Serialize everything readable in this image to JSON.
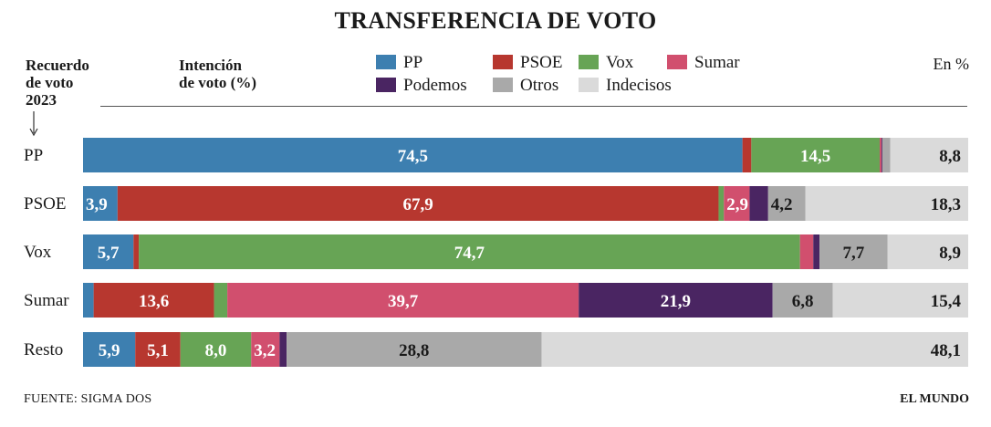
{
  "title": "TRANSFERENCIA DE VOTO",
  "header": {
    "left_line1": "Recuerdo",
    "left_line2": "de voto",
    "left_line3": "2023",
    "mid_line1": "Intención",
    "mid_line2": "de voto (%)",
    "unit": "En %"
  },
  "footer": {
    "source": "FUENTE:  SIGMA DOS",
    "brand": "EL MUNDO"
  },
  "chart_data": {
    "type": "bar",
    "orientation": "horizontal",
    "stacked": true,
    "xlim": [
      0,
      100
    ],
    "categories": [
      "PP",
      "PSOE",
      "Vox",
      "Sumar",
      "Resto"
    ],
    "series": [
      {
        "name": "PP",
        "color": "#3d7fb0",
        "values": [
          74.5,
          3.9,
          5.7,
          1.2,
          5.9
        ],
        "labels": [
          "74,5",
          "3,9",
          "5,7",
          "",
          "5,9"
        ]
      },
      {
        "name": "PSOE",
        "color": "#b7372f",
        "values": [
          1.0,
          67.9,
          0.6,
          13.6,
          5.1
        ],
        "labels": [
          "",
          "67,9",
          "",
          "13,6",
          "5,1"
        ]
      },
      {
        "name": "Vox",
        "color": "#67a455",
        "values": [
          14.5,
          0.6,
          74.7,
          1.5,
          8.0
        ],
        "labels": [
          "14,5",
          "",
          "74,7",
          "",
          "8,0"
        ]
      },
      {
        "name": "Sumar",
        "color": "#d14f6e",
        "values": [
          0.2,
          2.9,
          1.5,
          39.7,
          3.2
        ],
        "labels": [
          "",
          "2,9",
          "",
          "39,7",
          "3,2"
        ]
      },
      {
        "name": "Podemos",
        "color": "#4a2562",
        "values": [
          0.1,
          2.1,
          0.7,
          21.9,
          0.8
        ],
        "labels": [
          "",
          "",
          "",
          "21,9",
          ""
        ]
      },
      {
        "name": "Otros",
        "color": "#a9a9a9",
        "values": [
          0.9,
          4.2,
          7.7,
          6.8,
          28.8
        ],
        "labels": [
          "",
          "4,2",
          "7,7",
          "6,8",
          "28,8"
        ]
      },
      {
        "name": "Indecisos",
        "color": "#dadada",
        "values": [
          8.8,
          18.3,
          8.9,
          15.4,
          48.1
        ],
        "labels": [
          "8,8",
          "18,3",
          "8,9",
          "15,4",
          "48,1"
        ]
      }
    ],
    "label_colors": {
      "PP": "#ffffff",
      "PSOE": "#ffffff",
      "Vox": "#ffffff",
      "Sumar": "#ffffff",
      "Podemos": "#ffffff",
      "Otros": "#1a1a1a",
      "Indecisos": "#1a1a1a"
    }
  }
}
